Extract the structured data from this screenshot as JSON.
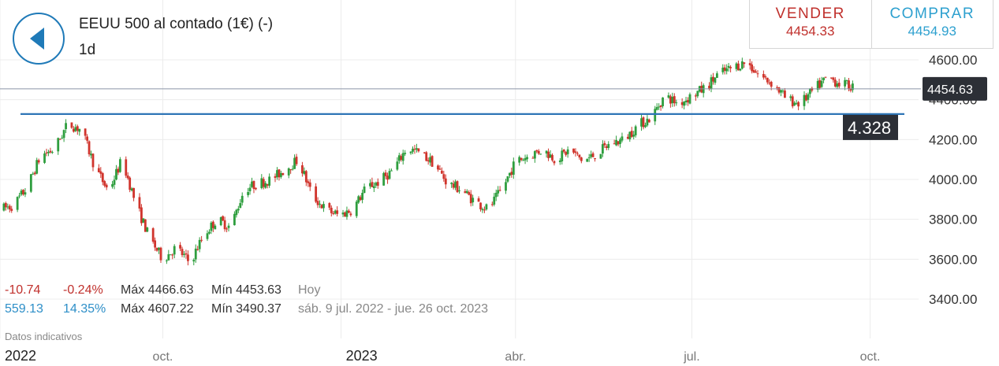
{
  "header": {
    "title": "EEUU 500 al contado (1€) (-)",
    "timeframe": "1d"
  },
  "trade": {
    "sell_label": "VENDER",
    "sell_price": "4454.33",
    "buy_label": "COMPRAR",
    "buy_price": "4454.93"
  },
  "stats": {
    "today": {
      "change": "-10.74",
      "change_pct": "-0.24%",
      "max": "Máx 4466.63",
      "min": "Mín 4453.63",
      "period": "Hoy"
    },
    "range": {
      "change": "559.13",
      "change_pct": "14.35%",
      "max": "Máx 4607.22",
      "min": "Mín 3490.37",
      "period": "sáb. 9 jul. 2022 - jue. 26 oct. 2023"
    }
  },
  "disclaimer": "Datos indicativos",
  "colors": {
    "up": "#2e9e3e",
    "down": "#d0342c",
    "line": "#2e75b6",
    "accent": "#1f7ab8"
  },
  "chart_data": {
    "type": "line",
    "style": "candlestick",
    "ylim": [
      3300,
      4680
    ],
    "yticks": [
      3400,
      3600,
      3800,
      4000,
      4200,
      4400,
      4600
    ],
    "ytick_labels": [
      "3400.00",
      "3600.00",
      "3800.00",
      "4000.00",
      "4200.00",
      "4400.00",
      "4600.00"
    ],
    "xlim": [
      "2022-07-09",
      "2023-10-26"
    ],
    "xticks": [
      {
        "date": "2022-07-09",
        "label": "2022"
      },
      {
        "date": "2022-10-01",
        "label": "oct."
      },
      {
        "date": "2023-01-01",
        "label": "2023"
      },
      {
        "date": "2023-04-01",
        "label": "abr."
      },
      {
        "date": "2023-07-01",
        "label": "jul."
      },
      {
        "date": "2023-10-01",
        "label": "oct."
      }
    ],
    "grid": true,
    "current_price": "4454.63",
    "current_price_value": 4454.63,
    "trendline": {
      "value": 4328,
      "label": "4.328"
    },
    "series": [
      {
        "x": "2022-07-09",
        "y": 3850
      },
      {
        "x": "2022-07-16",
        "y": 3870
      },
      {
        "x": "2022-07-23",
        "y": 3960
      },
      {
        "x": "2022-07-30",
        "y": 4120
      },
      {
        "x": "2022-08-06",
        "y": 4150
      },
      {
        "x": "2022-08-13",
        "y": 4280
      },
      {
        "x": "2022-08-20",
        "y": 4250
      },
      {
        "x": "2022-08-27",
        "y": 4060
      },
      {
        "x": "2022-09-03",
        "y": 3940
      },
      {
        "x": "2022-09-10",
        "y": 4100
      },
      {
        "x": "2022-09-17",
        "y": 3880
      },
      {
        "x": "2022-09-24",
        "y": 3710
      },
      {
        "x": "2022-10-01",
        "y": 3600
      },
      {
        "x": "2022-10-08",
        "y": 3660
      },
      {
        "x": "2022-10-15",
        "y": 3580
      },
      {
        "x": "2022-10-22",
        "y": 3720
      },
      {
        "x": "2022-10-29",
        "y": 3800
      },
      {
        "x": "2022-11-05",
        "y": 3760
      },
      {
        "x": "2022-11-12",
        "y": 3950
      },
      {
        "x": "2022-11-19",
        "y": 3980
      },
      {
        "x": "2022-11-26",
        "y": 4000
      },
      {
        "x": "2022-12-03",
        "y": 4050
      },
      {
        "x": "2022-12-10",
        "y": 4100
      },
      {
        "x": "2022-12-17",
        "y": 3920
      },
      {
        "x": "2022-12-24",
        "y": 3850
      },
      {
        "x": "2022-12-31",
        "y": 3820
      },
      {
        "x": "2023-01-07",
        "y": 3850
      },
      {
        "x": "2023-01-14",
        "y": 3960
      },
      {
        "x": "2023-01-21",
        "y": 3990
      },
      {
        "x": "2023-01-28",
        "y": 4050
      },
      {
        "x": "2023-02-04",
        "y": 4160
      },
      {
        "x": "2023-02-11",
        "y": 4130
      },
      {
        "x": "2023-02-18",
        "y": 4080
      },
      {
        "x": "2023-02-25",
        "y": 3980
      },
      {
        "x": "2023-03-04",
        "y": 3950
      },
      {
        "x": "2023-03-11",
        "y": 3890
      },
      {
        "x": "2023-03-18",
        "y": 3850
      },
      {
        "x": "2023-03-25",
        "y": 3950
      },
      {
        "x": "2023-04-01",
        "y": 4090
      },
      {
        "x": "2023-04-08",
        "y": 4120
      },
      {
        "x": "2023-04-15",
        "y": 4150
      },
      {
        "x": "2023-04-22",
        "y": 4100
      },
      {
        "x": "2023-04-29",
        "y": 4150
      },
      {
        "x": "2023-05-06",
        "y": 4090
      },
      {
        "x": "2023-05-13",
        "y": 4130
      },
      {
        "x": "2023-05-20",
        "y": 4180
      },
      {
        "x": "2023-05-27",
        "y": 4200
      },
      {
        "x": "2023-06-03",
        "y": 4270
      },
      {
        "x": "2023-06-10",
        "y": 4310
      },
      {
        "x": "2023-06-17",
        "y": 4420
      },
      {
        "x": "2023-06-24",
        "y": 4380
      },
      {
        "x": "2023-07-01",
        "y": 4420
      },
      {
        "x": "2023-07-08",
        "y": 4460
      },
      {
        "x": "2023-07-15",
        "y": 4530
      },
      {
        "x": "2023-07-22",
        "y": 4560
      },
      {
        "x": "2023-07-29",
        "y": 4590
      },
      {
        "x": "2023-08-05",
        "y": 4520
      },
      {
        "x": "2023-08-12",
        "y": 4480
      },
      {
        "x": "2023-08-19",
        "y": 4400
      },
      {
        "x": "2023-08-26",
        "y": 4380
      },
      {
        "x": "2023-09-02",
        "y": 4450
      },
      {
        "x": "2023-09-09",
        "y": 4510
      },
      {
        "x": "2023-09-16",
        "y": 4480
      }
    ]
  }
}
